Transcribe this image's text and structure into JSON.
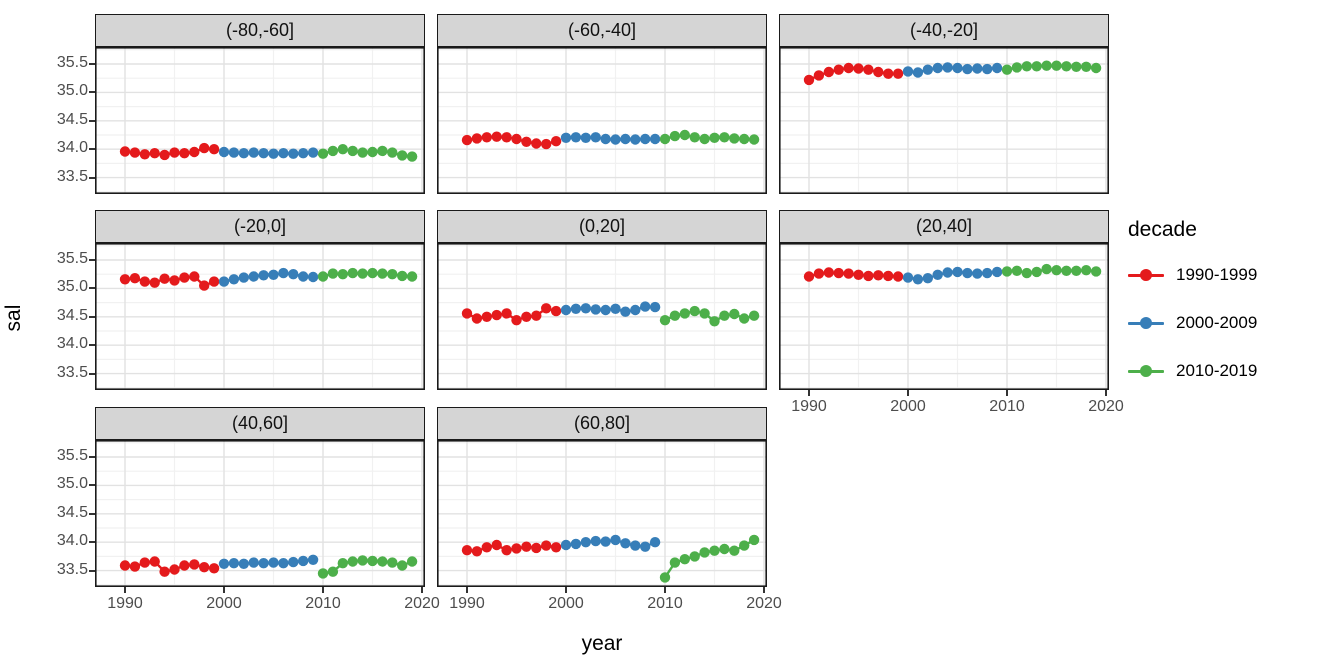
{
  "figure": {
    "x_axis_title": "year",
    "y_axis_title": "sal"
  },
  "axes": {
    "y_tick_labels": [
      "35.5",
      "35.0",
      "34.5",
      "34.0",
      "33.5"
    ],
    "x_tick_labels": [
      "1990",
      "2000",
      "2010",
      "2020"
    ]
  },
  "legend": {
    "title": "decade",
    "entries": [
      {
        "label": "1990-1999",
        "color": "#E41A1C"
      },
      {
        "label": "2000-2009",
        "color": "#377EB8"
      },
      {
        "label": "2010-2019",
        "color": "#4DAF4A"
      }
    ]
  },
  "style_colors": {
    "strip_fill": "#d5d5d5",
    "panel_border": "#1a1a1a",
    "grid_major": "#e2e2e2",
    "grid_minor": "#f1f1f1",
    "tick_text": "#4d4d4d"
  },
  "chart_data": {
    "type": "scatter",
    "mode": "points-with-lines",
    "title": "",
    "xlabel": "year",
    "ylabel": "sal",
    "facet_legend_title": "decade",
    "x_tick_values": [
      1990,
      2000,
      2010,
      2020
    ],
    "y_tick_values": [
      33.5,
      34.0,
      34.5,
      35.0,
      35.5
    ],
    "x_minor_ticks": [
      1995,
      2005,
      2015
    ],
    "y_minor_ticks": [
      33.25,
      33.75,
      34.25,
      34.75,
      35.25,
      35.75
    ],
    "xlim": [
      1987.5,
      2021.3
    ],
    "ylim": [
      33.2,
      35.8
    ],
    "grid": true,
    "legend_position": "right",
    "series_names": [
      "1990-1999",
      "2000-2009",
      "2010-2019"
    ],
    "series_start_years": [
      1990,
      2000,
      2010
    ],
    "facets": [
      {
        "label": "(-80,-60]",
        "series": [
          {
            "name": "1990-1999",
            "start_year": 1990,
            "values": [
              33.96,
              33.94,
              33.91,
              33.93,
              33.9,
              33.94,
              33.93,
              33.95,
              34.02,
              34.0
            ]
          },
          {
            "name": "2000-2009",
            "start_year": 2000,
            "values": [
              33.95,
              33.94,
              33.93,
              33.94,
              33.93,
              33.92,
              33.93,
              33.92,
              33.93,
              33.94
            ]
          },
          {
            "name": "2010-2019",
            "start_year": 2010,
            "values": [
              33.92,
              33.97,
              34.0,
              33.97,
              33.94,
              33.95,
              33.97,
              33.94,
              33.89,
              33.87
            ]
          }
        ]
      },
      {
        "label": "(-60,-40]",
        "series": [
          {
            "name": "1990-1999",
            "start_year": 1990,
            "values": [
              34.16,
              34.19,
              34.21,
              34.22,
              34.21,
              34.18,
              34.13,
              34.1,
              34.09,
              34.14
            ]
          },
          {
            "name": "2000-2009",
            "start_year": 2000,
            "values": [
              34.2,
              34.21,
              34.2,
              34.21,
              34.18,
              34.17,
              34.18,
              34.17,
              34.18,
              34.18
            ]
          },
          {
            "name": "2010-2019",
            "start_year": 2010,
            "values": [
              34.18,
              34.23,
              34.25,
              34.21,
              34.18,
              34.2,
              34.21,
              34.19,
              34.18,
              34.17
            ]
          }
        ]
      },
      {
        "label": "(-40,-20]",
        "series": [
          {
            "name": "1990-1999",
            "start_year": 1990,
            "values": [
              35.22,
              35.3,
              35.36,
              35.4,
              35.43,
              35.42,
              35.4,
              35.36,
              35.33,
              35.33
            ]
          },
          {
            "name": "2000-2009",
            "start_year": 2000,
            "values": [
              35.37,
              35.35,
              35.4,
              35.43,
              35.44,
              35.43,
              35.41,
              35.42,
              35.41,
              35.43
            ]
          },
          {
            "name": "2010-2019",
            "start_year": 2010,
            "values": [
              35.4,
              35.44,
              35.46,
              35.46,
              35.47,
              35.47,
              35.46,
              35.45,
              35.45,
              35.43
            ]
          }
        ]
      },
      {
        "label": "(-20,0]",
        "series": [
          {
            "name": "1990-1999",
            "start_year": 1990,
            "values": [
              35.16,
              35.18,
              35.12,
              35.1,
              35.17,
              35.14,
              35.19,
              35.21,
              35.05,
              35.12
            ]
          },
          {
            "name": "2000-2009",
            "start_year": 2000,
            "values": [
              35.12,
              35.16,
              35.19,
              35.21,
              35.23,
              35.24,
              35.27,
              35.25,
              35.21,
              35.2
            ]
          },
          {
            "name": "2010-2019",
            "start_year": 2010,
            "values": [
              35.21,
              35.26,
              35.25,
              35.27,
              35.26,
              35.27,
              35.26,
              35.25,
              35.22,
              35.21
            ]
          }
        ]
      },
      {
        "label": "(0,20]",
        "series": [
          {
            "name": "1990-1999",
            "start_year": 1990,
            "values": [
              34.56,
              34.47,
              34.5,
              34.53,
              34.56,
              34.44,
              34.5,
              34.52,
              34.65,
              34.6
            ]
          },
          {
            "name": "2000-2009",
            "start_year": 2000,
            "values": [
              34.62,
              34.64,
              34.65,
              34.63,
              34.62,
              34.64,
              34.59,
              34.62,
              34.68,
              34.67
            ]
          },
          {
            "name": "2010-2019",
            "start_year": 2010,
            "values": [
              34.44,
              34.52,
              34.56,
              34.6,
              34.56,
              34.42,
              34.52,
              34.55,
              34.47,
              34.52
            ]
          }
        ]
      },
      {
        "label": "(20,40]",
        "series": [
          {
            "name": "1990-1999",
            "start_year": 1990,
            "values": [
              35.21,
              35.26,
              35.28,
              35.27,
              35.26,
              35.24,
              35.22,
              35.23,
              35.22,
              35.21
            ]
          },
          {
            "name": "2000-2009",
            "start_year": 2000,
            "values": [
              35.19,
              35.16,
              35.18,
              35.24,
              35.28,
              35.29,
              35.27,
              35.26,
              35.27,
              35.29
            ]
          },
          {
            "name": "2010-2019",
            "start_year": 2010,
            "values": [
              35.3,
              35.31,
              35.27,
              35.29,
              35.34,
              35.32,
              35.31,
              35.31,
              35.32,
              35.3
            ]
          }
        ]
      },
      {
        "label": "(40,60]",
        "series": [
          {
            "name": "1990-1999",
            "start_year": 1990,
            "values": [
              33.59,
              33.57,
              33.64,
              33.66,
              33.48,
              33.52,
              33.59,
              33.61,
              33.56,
              33.54
            ]
          },
          {
            "name": "2000-2009",
            "start_year": 2000,
            "values": [
              33.62,
              33.63,
              33.62,
              33.64,
              33.63,
              33.64,
              33.63,
              33.65,
              33.67,
              33.69
            ]
          },
          {
            "name": "2010-2019",
            "start_year": 2010,
            "values": [
              33.45,
              33.48,
              33.63,
              33.66,
              33.68,
              33.67,
              33.66,
              33.64,
              33.59,
              33.66
            ]
          }
        ]
      },
      {
        "label": "(60,80]",
        "series": [
          {
            "name": "1990-1999",
            "start_year": 1990,
            "values": [
              33.86,
              33.84,
              33.91,
              33.95,
              33.86,
              33.89,
              33.92,
              33.9,
              33.94,
              33.91
            ]
          },
          {
            "name": "2000-2009",
            "start_year": 2000,
            "values": [
              33.95,
              33.97,
              34.0,
              34.02,
              34.01,
              34.04,
              33.98,
              33.94,
              33.92,
              34.0
            ]
          },
          {
            "name": "2010-2019",
            "start_year": 2010,
            "values": [
              33.38,
              33.64,
              33.7,
              33.75,
              33.82,
              33.85,
              33.88,
              33.85,
              33.94,
              34.04
            ]
          }
        ]
      }
    ]
  }
}
